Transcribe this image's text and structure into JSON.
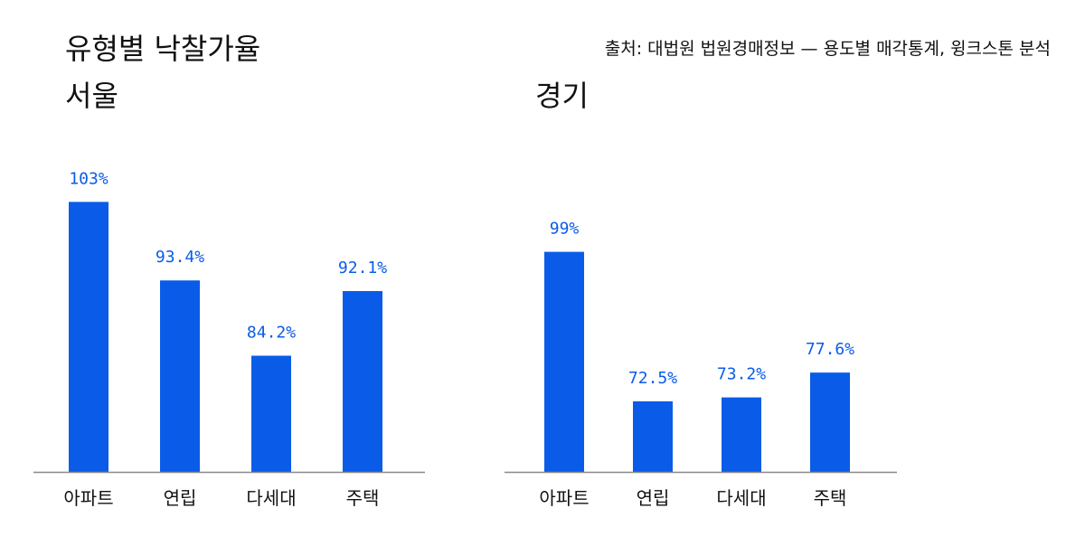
{
  "title": "유형별 낙찰가율",
  "source": "출처: 대법원 법원경매정보 — 용도별 매각통계, 윙크스톤 분석",
  "chart_data": [
    {
      "type": "bar",
      "title": "서울",
      "categories": [
        "아파트",
        "연립",
        "다세대",
        "주택"
      ],
      "values": [
        103,
        93.4,
        84.2,
        92.1
      ],
      "value_labels": [
        "103%",
        "93.4%",
        "84.2%",
        "92.1%"
      ],
      "color": "#0a5ce8",
      "ylim": [
        70,
        110
      ]
    },
    {
      "type": "bar",
      "title": "경기",
      "categories": [
        "아파트",
        "연립",
        "다세대",
        "주택"
      ],
      "values": [
        99,
        72.5,
        73.2,
        77.6
      ],
      "value_labels": [
        "99%",
        "72.5%",
        "73.2%",
        "77.6%"
      ],
      "color": "#0a5ce8",
      "ylim": [
        60,
        118
      ]
    }
  ]
}
